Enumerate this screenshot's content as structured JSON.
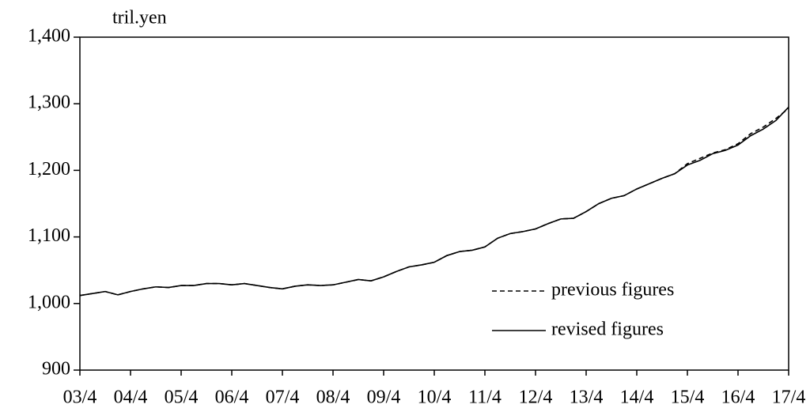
{
  "chart_data": {
    "type": "line",
    "y_label": "tril.yen",
    "categories": [
      "03/4",
      null,
      null,
      null,
      "04/4",
      null,
      null,
      null,
      "05/4",
      null,
      null,
      null,
      "06/4",
      null,
      null,
      null,
      "07/4",
      null,
      null,
      null,
      "08/4",
      null,
      null,
      null,
      "09/4",
      null,
      null,
      null,
      "10/4",
      null,
      null,
      null,
      "11/4",
      null,
      null,
      null,
      "12/4",
      null,
      null,
      null,
      "13/4",
      null,
      null,
      null,
      "14/4",
      null,
      null,
      null,
      "15/4",
      null,
      null,
      null,
      "16/4",
      null,
      null,
      null,
      "17/4"
    ],
    "series": [
      {
        "name": "previous figures",
        "color": "#000000",
        "dash": true,
        "values": [
          1012,
          1015,
          1018,
          1013,
          1018,
          1022,
          1025,
          1024,
          1027,
          1027,
          1030,
          1030,
          1028,
          1030,
          1027,
          1024,
          1022,
          1026,
          1028,
          1027,
          1028,
          1032,
          1036,
          1034,
          1040,
          1048,
          1055,
          1058,
          1062,
          1072,
          1078,
          1080,
          1085,
          1098,
          1105,
          1108,
          1112,
          1120,
          1127,
          1128,
          1138,
          1150,
          1158,
          1162,
          1172,
          1180,
          1188,
          1195,
          1210,
          1218,
          1226,
          1231,
          1240,
          1255,
          1265,
          1278,
          1293
        ]
      },
      {
        "name": "revised figures",
        "color": "#000000",
        "dash": false,
        "values": [
          1012,
          1015,
          1018,
          1013,
          1018,
          1022,
          1025,
          1024,
          1027,
          1027,
          1030,
          1030,
          1028,
          1030,
          1027,
          1024,
          1022,
          1026,
          1028,
          1027,
          1028,
          1032,
          1036,
          1034,
          1040,
          1048,
          1055,
          1058,
          1062,
          1072,
          1078,
          1080,
          1085,
          1098,
          1105,
          1108,
          1112,
          1120,
          1127,
          1128,
          1138,
          1150,
          1158,
          1162,
          1172,
          1180,
          1188,
          1195,
          1208,
          1215,
          1225,
          1230,
          1238,
          1252,
          1262,
          1275,
          1295
        ]
      }
    ],
    "ylim": [
      900,
      1400
    ],
    "yticks": [
      {
        "value": 900,
        "label": "900"
      },
      {
        "value": 1000,
        "label": "1,000"
      },
      {
        "value": 1100,
        "label": "1,100"
      },
      {
        "value": 1200,
        "label": "1,200"
      },
      {
        "value": 1300,
        "label": "1,300"
      },
      {
        "value": 1400,
        "label": "1,400"
      }
    ],
    "grid": false,
    "legend": "lower right"
  }
}
